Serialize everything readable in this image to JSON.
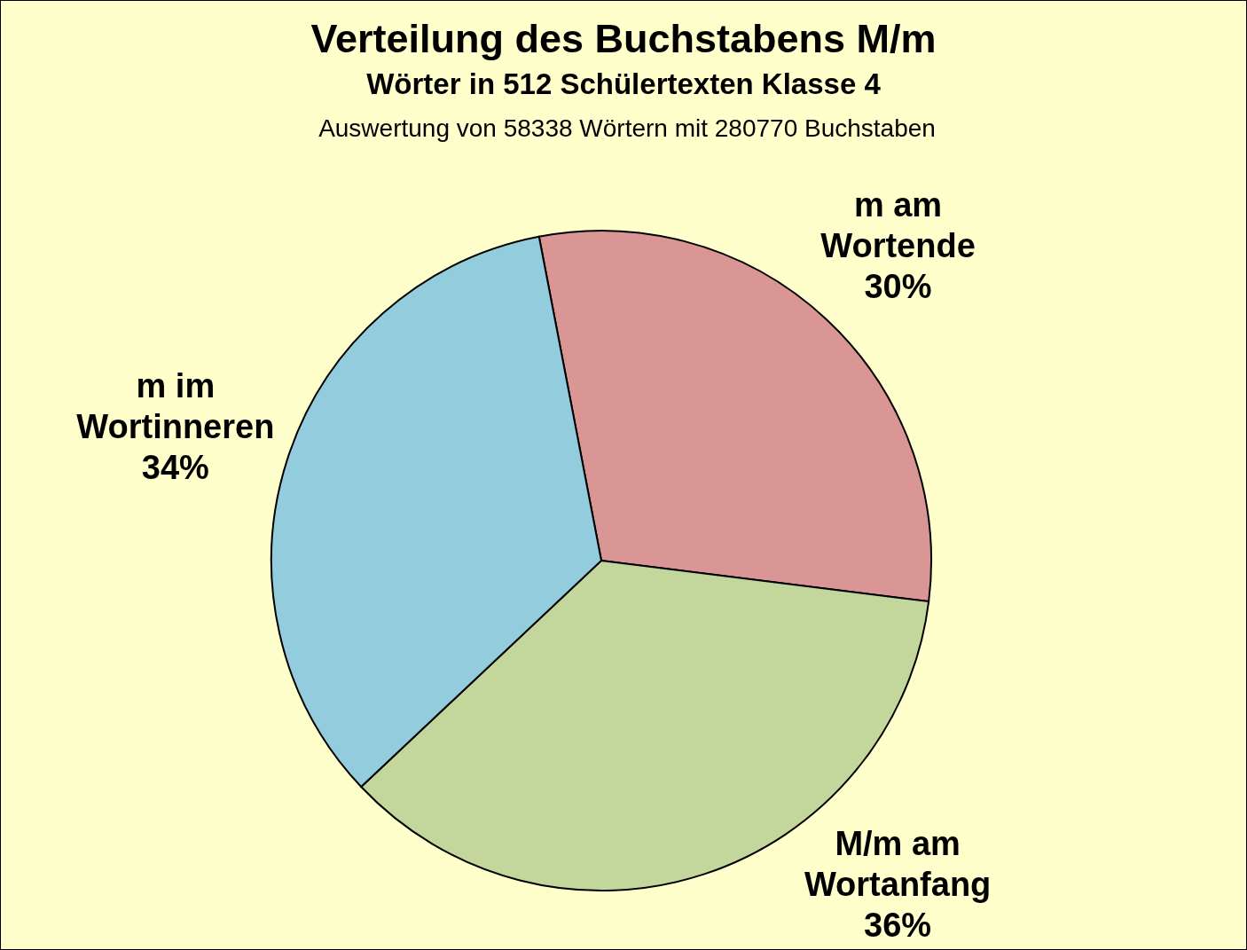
{
  "chart_data": {
    "type": "pie",
    "title": "Verteilung des Buchstabens M/m",
    "subtitle": "Wörter in 512 Schülertexten Klasse 4",
    "annotations": [
      "Auswertung von 58338 Wörtern mit 280770 Buchstaben"
    ],
    "categories": [
      "m am Wortende",
      "M/m am Wortanfang",
      "m im Wortinneren"
    ],
    "values": [
      30,
      36,
      34
    ],
    "colors": [
      "#d99694",
      "#c3d69b",
      "#93cddd"
    ],
    "value_labels": [
      "30%",
      "36%",
      "34%"
    ]
  }
}
